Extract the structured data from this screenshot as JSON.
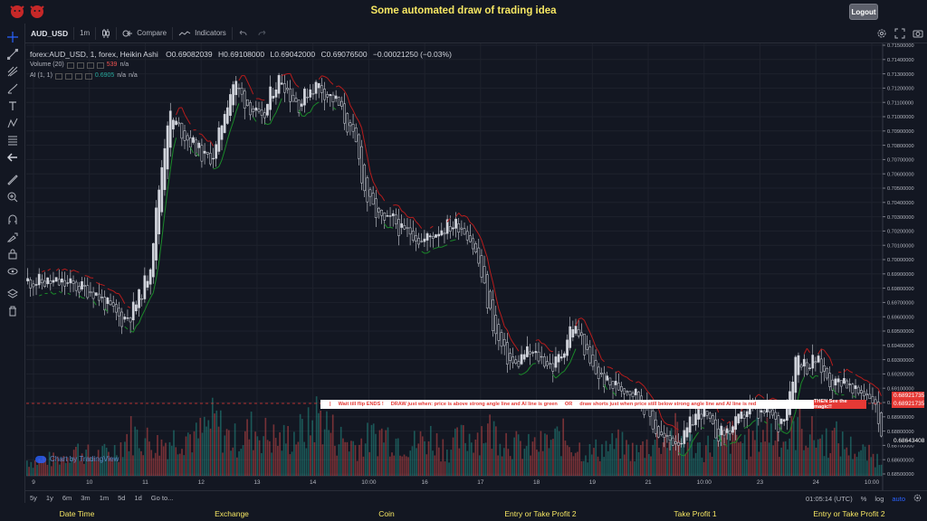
{
  "header": {
    "title": "Some automated draw of trading idea",
    "logout_label": "Logout",
    "logo_icons": [
      "bull-logo-icon",
      "bull-logo-icon"
    ]
  },
  "toolbar": {
    "symbol": "AUD_USD",
    "interval": "1m",
    "compare_label": "Compare",
    "indicators_label": "Indicators",
    "right_icons": [
      "gear-icon",
      "fullscreen-icon",
      "camera-icon"
    ]
  },
  "left_tools": [
    "crosshair-icon",
    "trend-line-icon",
    "pitchfork-icon",
    "brush-icon",
    "text-icon",
    "pattern-icon",
    "fib-icon",
    "back-arrow-icon",
    "ruler-icon",
    "zoom-icon",
    "magnet-icon",
    "lock-drawings-icon",
    "lock-icon",
    "eye-icon",
    "layers-icon",
    "trash-icon"
  ],
  "legend": {
    "symbol_line": "forex:AUD_USD, 1, forex, Heikin Ashi",
    "open_key": "O",
    "open": "0.69082039",
    "high_key": "H",
    "high": "0.69108000",
    "low_key": "L",
    "low": "0.69042000",
    "close_key": "C",
    "close": "0.69076500",
    "change": "−0.00021250 (−0.03%)",
    "volume_label": "Volume (20)",
    "volume_value": "539",
    "volume_na": "n/a",
    "ai_label": "AI (1, 1)",
    "ai_value": "0.6905",
    "ai_na1": "n/a",
    "ai_na2": "n/a"
  },
  "watermark": "Chart by TradingView",
  "banner": {
    "part1": "Wait till flip ENDS  !",
    "part2": "DRAW just when: price is above strong angle line and AI line is green",
    "part3": "OR",
    "part4": "draw shorts just when price still below strong angle line and AI line is red",
    "tail": "THEN See the magic!!"
  },
  "price_tags": [
    {
      "label": "0.68921735",
      "color": "#e53935"
    },
    {
      "label": "0.68921735",
      "color": "#e53935"
    },
    {
      "label": "0.68643408",
      "color": "#131722"
    }
  ],
  "chart_data": {
    "type": "candlestick",
    "y_axis_ticks": [
      "0.71500000",
      "0.71400000",
      "0.71300000",
      "0.71200000",
      "0.71100000",
      "0.71000000",
      "0.70900000",
      "0.70800000",
      "0.70700000",
      "0.70600000",
      "0.70500000",
      "0.70400000",
      "0.70300000",
      "0.70200000",
      "0.70100000",
      "0.70000000",
      "0.69900000",
      "0.69800000",
      "0.69700000",
      "0.69600000",
      "0.69500000",
      "0.69400000",
      "0.69300000",
      "0.69200000",
      "0.69100000",
      "0.69000000",
      "0.68900000",
      "0.68800000",
      "0.68700000",
      "0.68600000",
      "0.68500000"
    ],
    "x_axis_ticks": [
      "9",
      "10",
      "11",
      "12",
      "13",
      "14",
      "10:00",
      "16",
      "17",
      "18",
      "19",
      "21",
      "10:00",
      "23",
      "24",
      "10:00"
    ],
    "ylim": [
      0.685,
      0.715
    ],
    "price_path": [
      [
        0,
        0.6985
      ],
      [
        4,
        0.6983
      ],
      [
        7,
        0.6978
      ],
      [
        9,
        0.6964
      ],
      [
        10,
        0.6958
      ],
      [
        11,
        0.6962
      ],
      [
        12,
        0.6975
      ],
      [
        13,
        0.6993
      ],
      [
        14,
        0.705
      ],
      [
        15,
        0.7102
      ],
      [
        16,
        0.7093
      ],
      [
        17,
        0.7085
      ],
      [
        18,
        0.7078
      ],
      [
        19,
        0.707
      ],
      [
        20,
        0.7075
      ],
      [
        21,
        0.7105
      ],
      [
        22,
        0.7125
      ],
      [
        23,
        0.7112
      ],
      [
        24,
        0.7105
      ],
      [
        25,
        0.7095
      ],
      [
        26,
        0.7118
      ],
      [
        27,
        0.7128
      ],
      [
        28,
        0.7115
      ],
      [
        29,
        0.7108
      ],
      [
        30,
        0.712
      ],
      [
        31,
        0.7122
      ],
      [
        32,
        0.7115
      ],
      [
        33,
        0.711
      ],
      [
        35,
        0.708
      ],
      [
        36,
        0.7045
      ],
      [
        37,
        0.7033
      ],
      [
        38,
        0.7025
      ],
      [
        39,
        0.7028
      ],
      [
        40,
        0.7018
      ],
      [
        41,
        0.702
      ],
      [
        42,
        0.7012
      ],
      [
        44,
        0.7022
      ],
      [
        46,
        0.7025
      ],
      [
        47,
        0.7018
      ],
      [
        48,
        0.7
      ],
      [
        49,
        0.697
      ],
      [
        50,
        0.6945
      ],
      [
        51,
        0.6932
      ],
      [
        52,
        0.6925
      ],
      [
        53,
        0.6935
      ],
      [
        54,
        0.6933
      ],
      [
        55,
        0.693
      ],
      [
        56,
        0.6925
      ],
      [
        57,
        0.6935
      ],
      [
        58,
        0.6955
      ],
      [
        59,
        0.6945
      ],
      [
        60,
        0.6925
      ],
      [
        61,
        0.6918
      ],
      [
        62,
        0.6912
      ],
      [
        64,
        0.691
      ],
      [
        65,
        0.6905
      ],
      [
        66,
        0.6895
      ],
      [
        67,
        0.688
      ],
      [
        68,
        0.6873
      ],
      [
        70,
        0.6875
      ],
      [
        71,
        0.689
      ],
      [
        72,
        0.6895
      ],
      [
        73,
        0.688
      ],
      [
        74,
        0.6878
      ],
      [
        75,
        0.6882
      ],
      [
        76,
        0.6888
      ],
      [
        77,
        0.6898
      ],
      [
        78,
        0.689
      ],
      [
        79,
        0.6895
      ],
      [
        80,
        0.6882
      ],
      [
        81,
        0.69
      ],
      [
        82,
        0.6935
      ],
      [
        83,
        0.6925
      ],
      [
        84,
        0.693
      ],
      [
        85,
        0.692
      ],
      [
        86,
        0.6912
      ],
      [
        87,
        0.6918
      ],
      [
        88,
        0.6905
      ],
      [
        89,
        0.6908
      ],
      [
        90,
        0.6905
      ],
      [
        91,
        0.688
      ]
    ],
    "volume_profile": [
      0.2,
      0.18,
      0.22,
      0.2,
      0.25,
      0.35,
      0.3,
      0.25,
      0.28,
      0.3,
      0.4,
      0.55,
      0.5,
      0.45,
      0.4,
      0.45,
      0.5,
      0.55,
      0.48,
      0.6,
      0.7,
      0.55,
      0.45,
      0.5,
      0.6,
      0.55,
      0.5,
      0.45,
      0.5,
      0.55,
      0.6,
      0.8,
      0.65,
      0.5,
      0.45,
      0.4,
      0.45,
      0.5,
      0.55,
      0.5,
      0.45,
      0.4,
      0.45,
      0.5,
      0.4,
      0.35,
      0.45,
      0.5,
      0.55,
      0.6,
      0.55,
      0.5,
      0.4,
      0.35,
      0.38,
      0.4,
      0.45,
      0.5,
      0.42,
      0.35,
      0.3,
      0.35,
      0.38,
      0.4,
      0.35,
      0.3,
      0.4,
      0.45,
      0.5,
      0.55,
      0.45,
      0.4,
      0.35,
      0.4,
      0.45,
      0.5,
      0.45,
      0.4,
      0.55,
      0.6,
      0.5,
      0.45,
      0.65,
      0.55,
      0.5,
      0.45,
      0.5,
      0.4,
      0.35,
      0.3,
      0.25,
      0.2
    ],
    "colors": {
      "up": "#d1d4dc",
      "down": "#131722",
      "ai_green": "#1b8a2a",
      "ai_red": "#b71c1c",
      "vol_up": "#26a69a",
      "vol_down": "#ef5350"
    }
  },
  "bottom_bar": {
    "ranges": [
      "5y",
      "1y",
      "6m",
      "3m",
      "1m",
      "5d",
      "1d"
    ],
    "goto_label": "Go to...",
    "time": "01:05:14 (UTC)",
    "percent_label": "%",
    "log_label": "log",
    "auto_label": "auto",
    "settings_icon": "gear-icon"
  },
  "form_labels": [
    "Date Time",
    "Exchange",
    "Coin",
    "Entry or Take Profit 2",
    "Take Profit 1",
    "Entry or Take Profit 2"
  ]
}
